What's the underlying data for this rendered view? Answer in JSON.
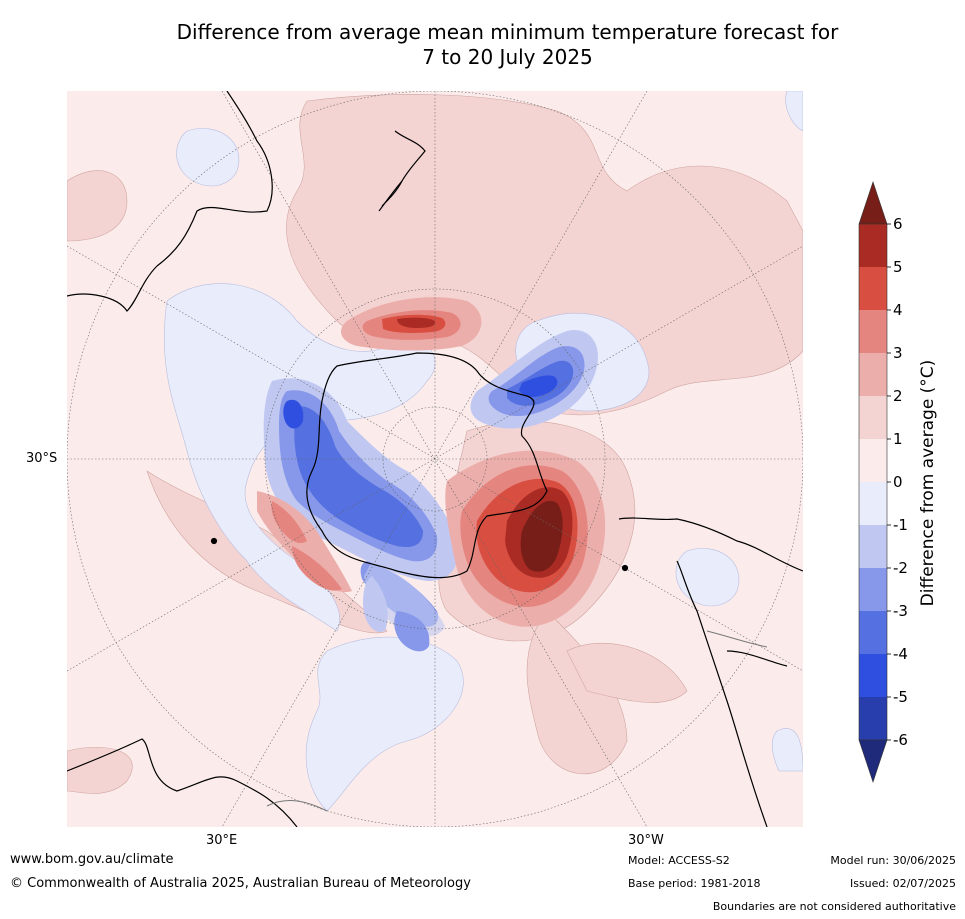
{
  "title": {
    "line1": "Difference from average mean minimum temperature forecast for",
    "line2": "7 to 20 July 2025"
  },
  "map": {
    "projection": "south-polar-stereographic",
    "graticule_labels": {
      "lat": "30°S",
      "lon_east": "30°E",
      "lon_west": "30°W"
    },
    "colors": {
      "neg6": "#1f2a7a",
      "neg5": "#283ead",
      "neg4": "#2f4fe0",
      "neg3": "#5570e0",
      "neg2": "#8798ea",
      "neg1": "#c0c8f2",
      "zero_neg": "#e9ecfa",
      "zero_pos": "#fbeceb",
      "pos1": "#f4d4d2",
      "pos2": "#ecaeab",
      "pos3": "#e5857f",
      "pos4": "#d84e41",
      "pos5": "#aa2b24",
      "pos6": "#781e19"
    }
  },
  "colorbar": {
    "ticks": [
      "-6",
      "-5",
      "-4",
      "-3",
      "-2",
      "-1",
      "0",
      "1",
      "2",
      "3",
      "4",
      "5",
      "6"
    ],
    "label": "Difference from average (°C)",
    "colors": [
      "#1f2a7a",
      "#283ead",
      "#2f4fe0",
      "#5570e0",
      "#8798ea",
      "#c0c8f2",
      "#e9ecfa",
      "#fbeceb",
      "#f4d4d2",
      "#ecaeab",
      "#e5857f",
      "#d84e41",
      "#aa2b24",
      "#781e19"
    ]
  },
  "footer": {
    "url": "www.bom.gov.au/climate",
    "copyright": "© Commonwealth of Australia 2025, Australian Bureau of Meteorology",
    "model": "Model: ACCESS-S2",
    "base_period": "Base period: 1981-2018",
    "model_run": "Model run: 30/06/2025",
    "issued": "Issued: 02/07/2025",
    "disclaimer": "Boundaries are not considered authoritative"
  }
}
